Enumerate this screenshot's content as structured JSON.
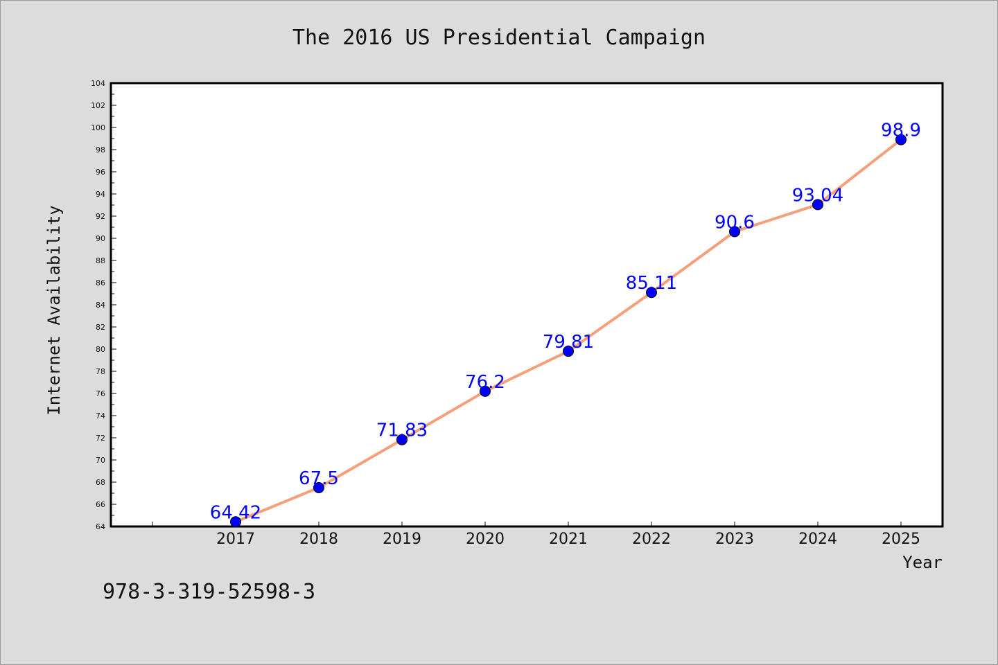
{
  "chart_data": {
    "type": "line",
    "title": "The 2016 US Presidential Campaign",
    "xlabel": "Year",
    "ylabel": "Internet Availability",
    "categories": [
      "2017",
      "2018",
      "2019",
      "2020",
      "2021",
      "2022",
      "2023",
      "2024",
      "2025"
    ],
    "series": [
      {
        "values": [
          64.42,
          67.5,
          71.83,
          76.2,
          79.81,
          85.11,
          90.6,
          93.04,
          98.9
        ],
        "data_labels": [
          "64.42",
          "67.5",
          "71.83",
          "76.2",
          "79.81",
          "85.11",
          "90.6",
          "93.04",
          "98.9"
        ],
        "line_color": "#f4a07a",
        "marker_color": "#0000ff"
      }
    ],
    "ylim": [
      64,
      104
    ],
    "yticks": [
      64,
      66,
      68,
      70,
      72,
      74,
      76,
      78,
      80,
      82,
      84,
      86,
      88,
      90,
      92,
      94,
      96,
      98,
      100,
      102,
      104
    ],
    "grid": false,
    "legend": "none"
  },
  "footer": {
    "text": "978-3-319-52598-3"
  },
  "colors": {
    "background": "#dcdcdc",
    "plot_background": "#ffffff",
    "label_color": "#0000ff"
  }
}
